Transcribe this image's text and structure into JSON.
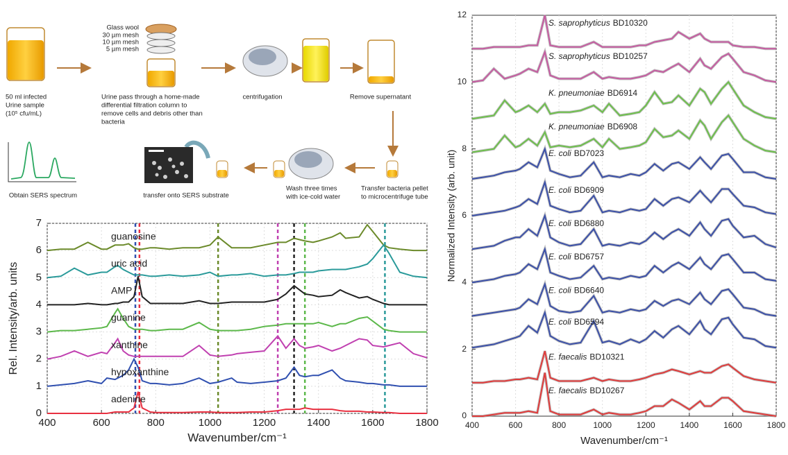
{
  "diagram": {
    "mesh_labels": [
      "Glass wool",
      "30 µm mesh",
      "10 µm mesh",
      "5 µm mesh"
    ],
    "steps": [
      {
        "lines": [
          "50 ml infected",
          "Urine sample",
          "(10⁵ cfu/mL)"
        ]
      },
      {
        "lines": [
          "Urine pass through a home-made",
          "differential filtration column to",
          "remove cells and debris other than",
          "bacteria"
        ]
      },
      {
        "lines": [
          "centrifugation"
        ]
      },
      {
        "lines": [
          "Remove supernatant"
        ]
      },
      {
        "lines": [
          "Transfer bacteria pellet",
          "to microcentrifuge tube"
        ]
      },
      {
        "lines": [
          "Wash three times",
          "with ice-cold water"
        ]
      },
      {
        "lines": [
          "transfer onto SERS substrate"
        ]
      },
      {
        "lines": [
          "Obtain SERS spectrum"
        ]
      }
    ]
  },
  "chart_data": [
    {
      "type": "line",
      "xlabel": "Wavenumber/cm⁻¹",
      "ylabel": "Rel. Intensity/arb. units",
      "xlim": [
        400,
        1800
      ],
      "ylim": [
        0,
        7
      ],
      "xticks": [
        400,
        600,
        800,
        1000,
        1200,
        1400,
        1600,
        1800
      ],
      "yticks": [
        0,
        1,
        2,
        3,
        4,
        5,
        6,
        7
      ],
      "grid": true,
      "x": [
        400,
        450,
        500,
        550,
        600,
        620,
        650,
        660,
        680,
        700,
        720,
        735,
        750,
        780,
        800,
        850,
        900,
        960,
        1000,
        1030,
        1080,
        1100,
        1150,
        1200,
        1250,
        1280,
        1310,
        1330,
        1350,
        1380,
        1400,
        1450,
        1480,
        1500,
        1550,
        1580,
        1600,
        1640,
        1660,
        1700,
        1750,
        1800
      ],
      "series": [
        {
          "name": "guanosine",
          "color": "#6b8a2a",
          "values": [
            6.0,
            6.05,
            6.05,
            6.3,
            6.05,
            6.05,
            6.2,
            6.2,
            6.2,
            6.25,
            6.1,
            6.05,
            6.05,
            6.1,
            6.1,
            6.05,
            6.1,
            6.1,
            6.2,
            6.5,
            6.1,
            6.1,
            6.1,
            6.2,
            6.3,
            6.3,
            6.45,
            6.4,
            6.35,
            6.3,
            6.35,
            6.5,
            6.65,
            6.45,
            6.5,
            6.95,
            6.7,
            6.2,
            6.1,
            6.05,
            6.0,
            6.0
          ]
        },
        {
          "name": "uric acid",
          "color": "#2a9a9a",
          "values": [
            5.0,
            5.05,
            5.35,
            5.1,
            5.2,
            5.2,
            5.4,
            5.45,
            5.3,
            5.2,
            5.1,
            5.1,
            5.1,
            5.05,
            5.05,
            5.1,
            5.05,
            5.1,
            5.2,
            5.05,
            5.1,
            5.1,
            5.15,
            5.05,
            5.1,
            5.1,
            5.15,
            5.2,
            5.2,
            5.2,
            5.25,
            5.3,
            5.3,
            5.3,
            5.4,
            5.5,
            5.7,
            6.2,
            5.9,
            5.2,
            5.05,
            5.0
          ]
        },
        {
          "name": "AMP",
          "color": "#222222",
          "values": [
            4.0,
            4.0,
            4.0,
            4.05,
            4.0,
            4.0,
            4.05,
            4.05,
            4.1,
            4.1,
            4.3,
            5.05,
            4.3,
            4.05,
            4.05,
            4.05,
            4.05,
            4.15,
            4.05,
            4.05,
            4.1,
            4.1,
            4.1,
            4.1,
            4.2,
            4.4,
            4.7,
            4.55,
            4.4,
            4.35,
            4.3,
            4.35,
            4.55,
            4.45,
            4.25,
            4.3,
            4.2,
            4.05,
            4.0,
            4.0,
            4.0,
            4.0
          ]
        },
        {
          "name": "guanine",
          "color": "#5cb84a",
          "values": [
            3.0,
            3.05,
            3.05,
            3.1,
            3.15,
            3.2,
            3.7,
            3.85,
            3.5,
            3.2,
            3.1,
            3.1,
            3.1,
            3.05,
            3.05,
            3.1,
            3.1,
            3.35,
            3.1,
            3.05,
            3.05,
            3.05,
            3.1,
            3.2,
            3.25,
            3.3,
            3.3,
            3.3,
            3.3,
            3.3,
            3.35,
            3.2,
            3.3,
            3.3,
            3.5,
            3.55,
            3.4,
            3.1,
            3.05,
            3.0,
            3.0,
            3.0
          ]
        },
        {
          "name": "xanthine",
          "color": "#c040b0",
          "values": [
            2.0,
            2.1,
            2.3,
            2.1,
            2.25,
            2.2,
            2.6,
            2.75,
            2.3,
            2.15,
            2.1,
            2.1,
            2.1,
            2.1,
            2.1,
            2.1,
            2.1,
            2.5,
            2.15,
            2.1,
            2.15,
            2.2,
            2.25,
            2.3,
            2.85,
            2.4,
            2.75,
            2.5,
            2.4,
            2.45,
            2.5,
            2.3,
            2.4,
            2.5,
            2.75,
            2.7,
            2.5,
            2.45,
            2.5,
            2.6,
            2.2,
            2.05
          ]
        },
        {
          "name": "hypoxanthine",
          "color": "#3050b0",
          "values": [
            1.0,
            1.05,
            1.1,
            1.2,
            1.1,
            1.3,
            1.25,
            1.3,
            1.4,
            1.6,
            2.0,
            1.7,
            1.2,
            1.1,
            1.1,
            1.05,
            1.1,
            1.3,
            1.1,
            1.15,
            1.3,
            1.15,
            1.1,
            1.15,
            1.2,
            1.3,
            1.7,
            1.4,
            1.35,
            1.4,
            1.4,
            1.6,
            1.3,
            1.2,
            1.15,
            1.1,
            1.1,
            1.05,
            1.05,
            1.0,
            1.0,
            1.0
          ]
        },
        {
          "name": "adenine",
          "color": "#e83040",
          "values": [
            0.0,
            0.0,
            0.0,
            0.0,
            0.0,
            0.0,
            0.05,
            0.05,
            0.05,
            0.05,
            0.2,
            0.8,
            0.2,
            0.05,
            0.03,
            0.03,
            0.03,
            0.05,
            0.05,
            0.03,
            0.03,
            0.03,
            0.05,
            0.05,
            0.1,
            0.15,
            0.15,
            0.15,
            0.2,
            0.15,
            0.15,
            0.15,
            0.1,
            0.08,
            0.08,
            0.05,
            0.05,
            0.03,
            0.03,
            0.0,
            0.0,
            0.0
          ]
        }
      ],
      "markers": [
        {
          "x": 725,
          "color": "#3050b0"
        },
        {
          "x": 740,
          "color": "#e83040"
        },
        {
          "x": 1030,
          "color": "#6b8a2a"
        },
        {
          "x": 1250,
          "color": "#c040b0"
        },
        {
          "x": 1310,
          "color": "#222222"
        },
        {
          "x": 1350,
          "color": "#5cb84a"
        },
        {
          "x": 1645,
          "color": "#2a9a9a"
        }
      ]
    },
    {
      "type": "line",
      "xlabel": "Wavenumber/cm⁻¹",
      "ylabel": "Normalized Intensity (arb. unit)",
      "xlim": [
        400,
        1800
      ],
      "ylim": [
        0,
        12
      ],
      "xticks": [
        400,
        600,
        800,
        1000,
        1200,
        1400,
        1600,
        1800
      ],
      "yticks": [
        0,
        2,
        4,
        6,
        8,
        10,
        12
      ],
      "grid": true,
      "x": [
        400,
        450,
        500,
        550,
        600,
        620,
        660,
        700,
        735,
        760,
        800,
        850,
        900,
        960,
        1000,
        1030,
        1080,
        1130,
        1170,
        1200,
        1240,
        1280,
        1320,
        1350,
        1400,
        1450,
        1470,
        1500,
        1550,
        1580,
        1600,
        1650,
        1700,
        1750,
        1800
      ],
      "series": [
        {
          "species": "S. saprophyticus",
          "strain": "BD10320",
          "color": "#c55aa0",
          "values": [
            11.0,
            11.0,
            11.05,
            11.05,
            11.05,
            11.05,
            11.1,
            11.1,
            12.0,
            11.1,
            11.05,
            11.05,
            11.05,
            11.2,
            11.05,
            11.05,
            11.05,
            11.05,
            11.1,
            11.1,
            11.2,
            11.25,
            11.3,
            11.5,
            11.3,
            11.45,
            11.3,
            11.2,
            11.2,
            11.2,
            11.1,
            11.05,
            11.05,
            11.0,
            11.0
          ]
        },
        {
          "species": "S. saprophyticus",
          "strain": "BD10257",
          "color": "#c55aa0",
          "values": [
            10.0,
            10.05,
            10.4,
            10.1,
            10.2,
            10.25,
            10.4,
            10.3,
            10.9,
            10.2,
            10.1,
            10.1,
            10.1,
            10.3,
            10.1,
            10.15,
            10.1,
            10.1,
            10.15,
            10.2,
            10.35,
            10.3,
            10.45,
            10.55,
            10.3,
            10.7,
            10.5,
            10.4,
            10.75,
            10.85,
            10.7,
            10.3,
            10.2,
            10.05,
            10.0
          ]
        },
        {
          "species": "K. pneumoniae",
          "strain": "BD6914",
          "color": "#6cbf4a",
          "values": [
            8.9,
            8.95,
            9.0,
            9.45,
            9.1,
            9.15,
            9.3,
            9.1,
            9.35,
            9.05,
            9.1,
            9.1,
            9.15,
            9.3,
            9.1,
            9.35,
            9.0,
            9.05,
            9.1,
            9.3,
            9.7,
            9.35,
            9.4,
            9.6,
            9.3,
            9.8,
            9.7,
            9.35,
            9.8,
            10.0,
            9.8,
            9.3,
            9.1,
            8.95,
            8.9
          ]
        },
        {
          "species": "K. pneumoniae",
          "strain": "BD6908",
          "color": "#6cbf4a",
          "values": [
            7.9,
            7.95,
            8.0,
            8.4,
            8.05,
            8.1,
            8.3,
            8.1,
            8.5,
            8.05,
            8.1,
            8.05,
            8.1,
            8.3,
            8.05,
            8.3,
            8.0,
            8.05,
            8.1,
            8.2,
            8.6,
            8.35,
            8.4,
            8.55,
            8.3,
            8.85,
            8.7,
            8.3,
            8.8,
            9.0,
            8.8,
            8.3,
            8.1,
            7.95,
            7.9
          ]
        },
        {
          "species": "E. coli",
          "strain": "BD7023",
          "color": "#3a4fa8",
          "values": [
            7.1,
            7.15,
            7.2,
            7.3,
            7.35,
            7.4,
            7.6,
            7.45,
            8.0,
            7.35,
            7.25,
            7.15,
            7.2,
            7.6,
            7.15,
            7.2,
            7.15,
            7.25,
            7.2,
            7.3,
            7.55,
            7.35,
            7.55,
            7.6,
            7.4,
            7.75,
            7.6,
            7.4,
            7.8,
            7.85,
            7.7,
            7.3,
            7.3,
            7.15,
            7.1
          ]
        },
        {
          "species": "E. coli",
          "strain": "BD6909",
          "color": "#3a4fa8",
          "values": [
            6.0,
            6.05,
            6.1,
            6.15,
            6.25,
            6.3,
            6.5,
            6.35,
            7.0,
            6.3,
            6.2,
            6.1,
            6.15,
            6.6,
            6.1,
            6.15,
            6.1,
            6.2,
            6.15,
            6.2,
            6.5,
            6.3,
            6.5,
            6.55,
            6.4,
            6.75,
            6.6,
            6.4,
            6.8,
            6.8,
            6.65,
            6.3,
            6.25,
            6.1,
            6.05
          ]
        },
        {
          "species": "E. coli",
          "strain": "BD6880",
          "color": "#3a4fa8",
          "values": [
            5.0,
            5.05,
            5.1,
            5.25,
            5.35,
            5.35,
            5.6,
            5.4,
            6.0,
            5.35,
            5.2,
            5.1,
            5.15,
            5.6,
            5.1,
            5.15,
            5.1,
            5.2,
            5.15,
            5.25,
            5.5,
            5.3,
            5.5,
            5.6,
            5.4,
            5.8,
            5.6,
            5.4,
            5.85,
            5.9,
            5.7,
            5.35,
            5.4,
            5.15,
            5.05
          ]
        },
        {
          "species": "E. coli",
          "strain": "BD6757",
          "color": "#3a4fa8",
          "values": [
            4.0,
            4.05,
            4.1,
            4.2,
            4.25,
            4.3,
            4.55,
            4.4,
            5.0,
            4.3,
            4.2,
            4.1,
            4.15,
            4.5,
            4.1,
            4.15,
            4.1,
            4.2,
            4.15,
            4.2,
            4.5,
            4.3,
            4.5,
            4.6,
            4.4,
            4.75,
            4.55,
            4.4,
            4.8,
            4.85,
            4.7,
            4.3,
            4.3,
            4.1,
            4.05
          ]
        },
        {
          "species": "E. coli",
          "strain": "BD6640",
          "color": "#3a4fa8",
          "values": [
            3.0,
            3.05,
            3.1,
            3.15,
            3.2,
            3.25,
            3.5,
            3.35,
            3.95,
            3.3,
            3.15,
            3.1,
            3.15,
            3.6,
            3.1,
            3.15,
            3.1,
            3.2,
            3.15,
            3.2,
            3.45,
            3.3,
            3.45,
            3.5,
            3.35,
            3.7,
            3.5,
            3.35,
            3.75,
            3.8,
            3.65,
            3.25,
            3.2,
            3.05,
            3.0
          ]
        },
        {
          "species": "E. coli",
          "strain": "BD6594",
          "color": "#3a4fa8",
          "values": [
            2.05,
            2.1,
            2.15,
            2.25,
            2.35,
            2.4,
            2.7,
            2.5,
            3.1,
            2.4,
            2.25,
            2.15,
            2.2,
            2.85,
            2.2,
            2.25,
            2.15,
            2.3,
            2.2,
            2.3,
            2.55,
            2.35,
            2.6,
            2.7,
            2.45,
            2.85,
            2.6,
            2.45,
            2.9,
            2.95,
            2.75,
            2.35,
            2.3,
            2.1,
            2.05
          ]
        },
        {
          "species": "E. faecalis",
          "strain": "BD10321",
          "color": "#e03a3a",
          "values": [
            1.0,
            1.0,
            1.05,
            1.05,
            1.1,
            1.1,
            1.15,
            1.1,
            1.95,
            1.15,
            1.05,
            1.05,
            1.05,
            1.15,
            1.05,
            1.1,
            1.05,
            1.05,
            1.1,
            1.15,
            1.25,
            1.3,
            1.4,
            1.35,
            1.25,
            1.35,
            1.3,
            1.3,
            1.5,
            1.55,
            1.45,
            1.2,
            1.1,
            1.05,
            1.0
          ]
        },
        {
          "species": "E. faecalis",
          "strain": "BD10267",
          "color": "#e03a3a",
          "values": [
            0.0,
            0.0,
            0.05,
            0.1,
            0.1,
            0.1,
            0.15,
            0.1,
            1.3,
            0.15,
            0.05,
            0.05,
            0.05,
            0.2,
            0.05,
            0.1,
            0.05,
            0.05,
            0.1,
            0.15,
            0.3,
            0.3,
            0.5,
            0.4,
            0.2,
            0.45,
            0.3,
            0.3,
            0.55,
            0.55,
            0.45,
            0.15,
            0.1,
            0.05,
            0.0
          ]
        }
      ]
    }
  ]
}
